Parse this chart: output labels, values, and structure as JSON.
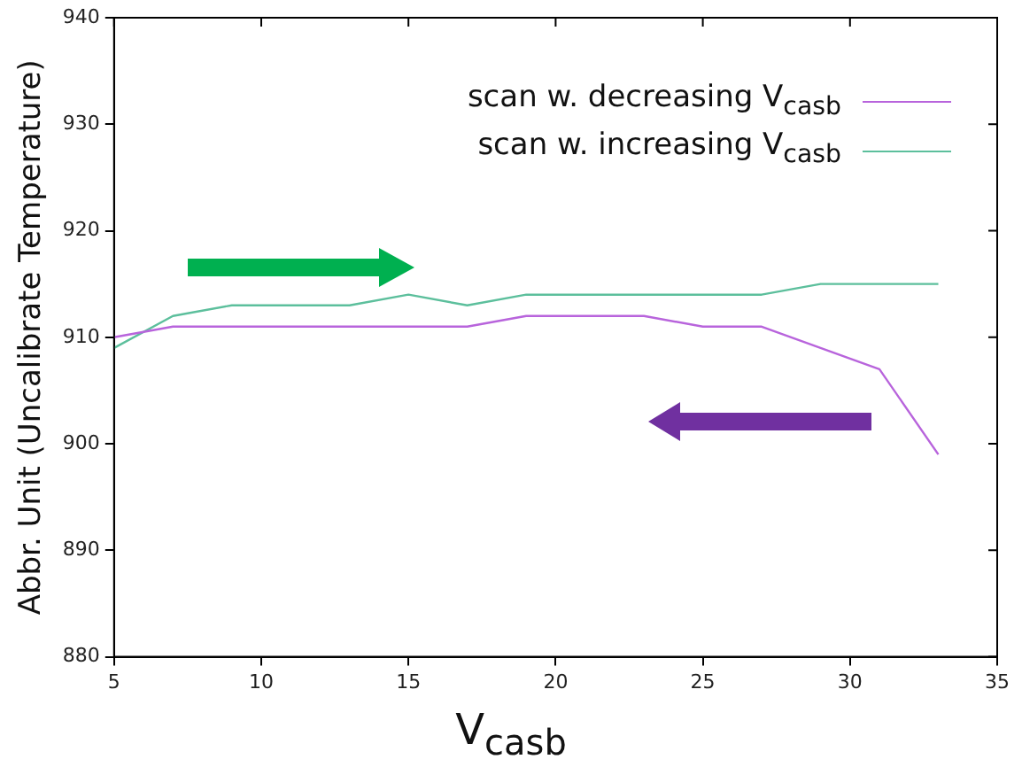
{
  "chart_data": {
    "type": "line",
    "xlabel": "V$_{casb}$",
    "ylabel": "Abbr. Unit (Uncalibrate Temperature)",
    "x": [
      5,
      7,
      9,
      11,
      13,
      15,
      17,
      19,
      21,
      23,
      25,
      27,
      29,
      31,
      33
    ],
    "series": [
      {
        "name": "scan w. decreasing V$_{casb}$",
        "color": "#b864dc",
        "values": [
          910,
          911,
          911,
          911,
          911,
          911,
          911,
          912,
          912,
          912,
          911,
          911,
          909,
          907,
          899
        ]
      },
      {
        "name": "scan w. increasing V$_{casb}$",
        "color": "#5cbf9c",
        "values": [
          909,
          912,
          913,
          913,
          913,
          914,
          913,
          914,
          914,
          914,
          914,
          914,
          915,
          915,
          915
        ]
      }
    ],
    "xlim": [
      5,
      35
    ],
    "xticks": [
      5,
      10,
      15,
      20,
      25,
      30,
      35
    ],
    "ylim": [
      880,
      940
    ],
    "yticks": [
      880,
      890,
      900,
      910,
      920,
      930,
      940
    ],
    "grid": false,
    "legend": "top right",
    "marker": "none",
    "line_style": "solid"
  }
}
